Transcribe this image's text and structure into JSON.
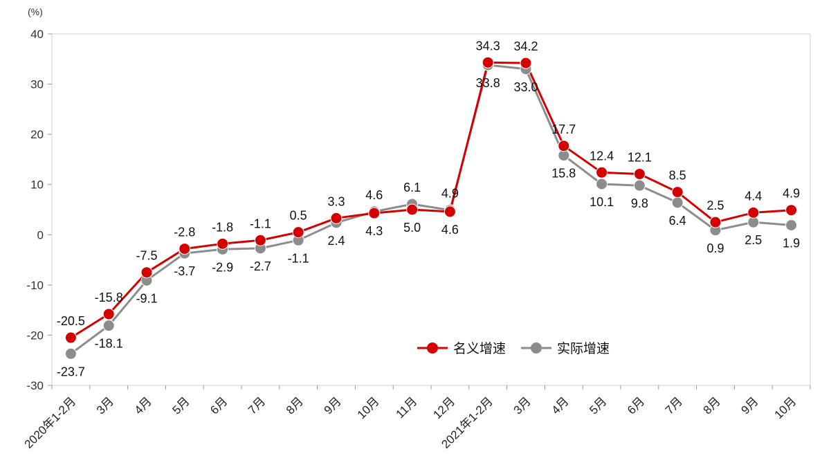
{
  "chart_data": {
    "type": "line",
    "unit_label": "(%)",
    "categories": [
      "2020年1-2月",
      "3月",
      "4月",
      "5月",
      "6月",
      "7月",
      "8月",
      "9月",
      "10月",
      "11月",
      "12月",
      "2021年1-2月",
      "3月",
      "4月",
      "5月",
      "6月",
      "7月",
      "8月",
      "9月",
      "10月"
    ],
    "series": [
      {
        "name": "名义增速",
        "color": "#d40000",
        "values": [
          -20.5,
          -15.8,
          -7.5,
          -2.8,
          -1.8,
          -1.1,
          0.5,
          3.3,
          4.3,
          5.0,
          4.6,
          34.3,
          34.2,
          17.7,
          12.4,
          12.1,
          8.5,
          2.5,
          4.4,
          4.9
        ],
        "labels": [
          "-20.5",
          "-15.8",
          "-7.5",
          "-2.8",
          "-1.8",
          "-1.1",
          "0.5",
          "3.3",
          "4.3",
          "5.0",
          "4.6",
          "34.3",
          "34.2",
          "17.7",
          "12.4",
          "12.1",
          "8.5",
          "2.5",
          "4.4",
          "4.9"
        ]
      },
      {
        "name": "实际增速",
        "color": "#8c8c8c",
        "values": [
          -23.7,
          -18.1,
          -9.1,
          -3.7,
          -2.9,
          -2.7,
          -1.1,
          2.4,
          4.6,
          6.1,
          4.9,
          33.8,
          33.0,
          15.8,
          10.1,
          9.8,
          6.4,
          0.9,
          2.5,
          1.9
        ],
        "labels": [
          "-23.7",
          "-18.1",
          "-9.1",
          "-3.7",
          "-2.9",
          "-2.7",
          "-1.1",
          "2.4",
          "4.6",
          "6.1",
          "4.9",
          "33.8",
          "33.0",
          "15.8",
          "10.1",
          "9.8",
          "6.4",
          "0.9",
          "2.5",
          "1.9"
        ]
      }
    ],
    "ylim": [
      -30,
      40
    ],
    "yticks": [
      -30,
      -20,
      -10,
      0,
      10,
      20,
      30,
      40
    ],
    "ytick_labels": [
      "-30",
      "-20",
      "-10",
      "0",
      "10",
      "20",
      "30",
      "40"
    ],
    "legend_position": "center-right",
    "grid": false
  }
}
